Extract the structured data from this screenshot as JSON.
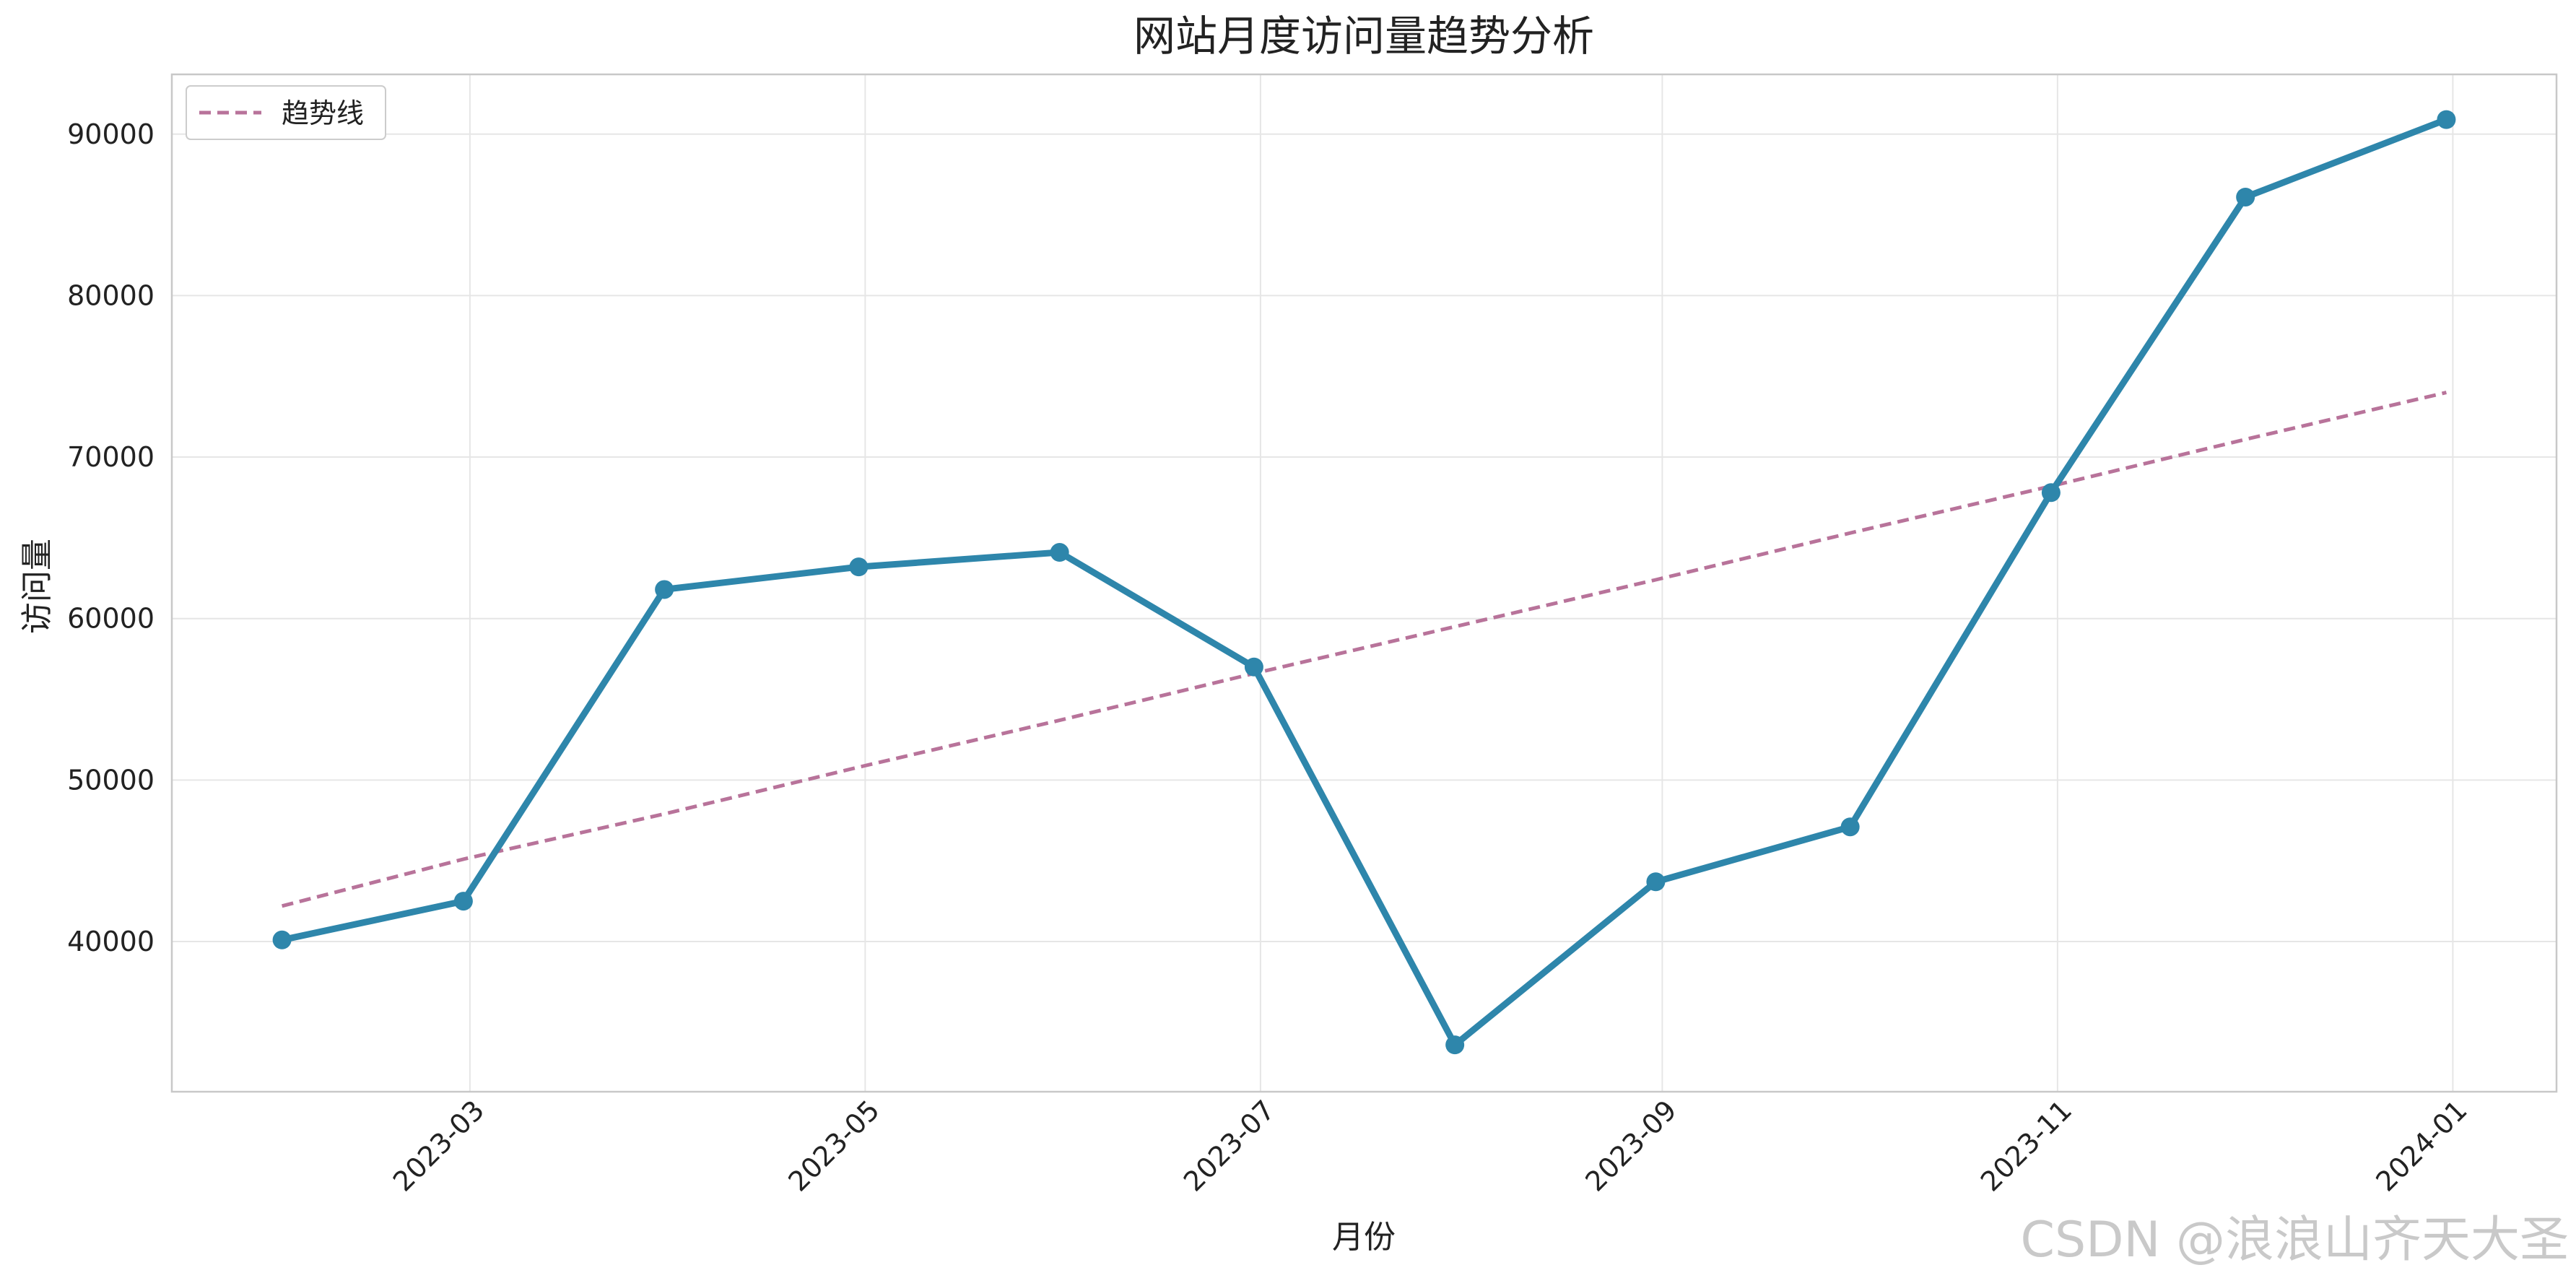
{
  "chart_data": {
    "type": "line",
    "title": "网站月度访问量趋势分析",
    "xlabel": "月份",
    "ylabel": "访问量",
    "x": [
      "2023-01-31",
      "2023-02-28",
      "2023-03-31",
      "2023-04-30",
      "2023-05-31",
      "2023-06-30",
      "2023-07-31",
      "2023-08-31",
      "2023-09-30",
      "2023-10-31",
      "2023-11-30",
      "2023-12-31"
    ],
    "x_tick_labels": [
      "2023-03",
      "2023-05",
      "2023-07",
      "2023-09",
      "2023-11",
      "2024-01"
    ],
    "x_tick_dates": [
      "2023-03-01",
      "2023-05-01",
      "2023-07-01",
      "2023-09-01",
      "2023-11-01",
      "2024-01-01"
    ],
    "xlim": [
      "2023-01-14",
      "2024-01-17"
    ],
    "ylim": [
      30700,
      93700
    ],
    "yticks": [
      40000,
      50000,
      60000,
      70000,
      80000,
      90000
    ],
    "grid": true,
    "legend": {
      "position": "top-left",
      "entries": [
        "趋势线"
      ]
    },
    "series": [
      {
        "values": [
          40100,
          42500,
          61800,
          63200,
          64100,
          57000,
          33600,
          43700,
          47100,
          67800,
          86100,
          90900
        ],
        "color": "#2e86ab",
        "style": "solid",
        "markers": true
      },
      {
        "name": "趋势线",
        "values": [
          42200,
          45100,
          47900,
          50800,
          53700,
          56600,
          59500,
          62400,
          65300,
          68200,
          71100,
          74000
        ],
        "color": "#b8739a",
        "style": "dashed"
      }
    ]
  },
  "watermark": "CSDN @浪浪山齐天大圣"
}
